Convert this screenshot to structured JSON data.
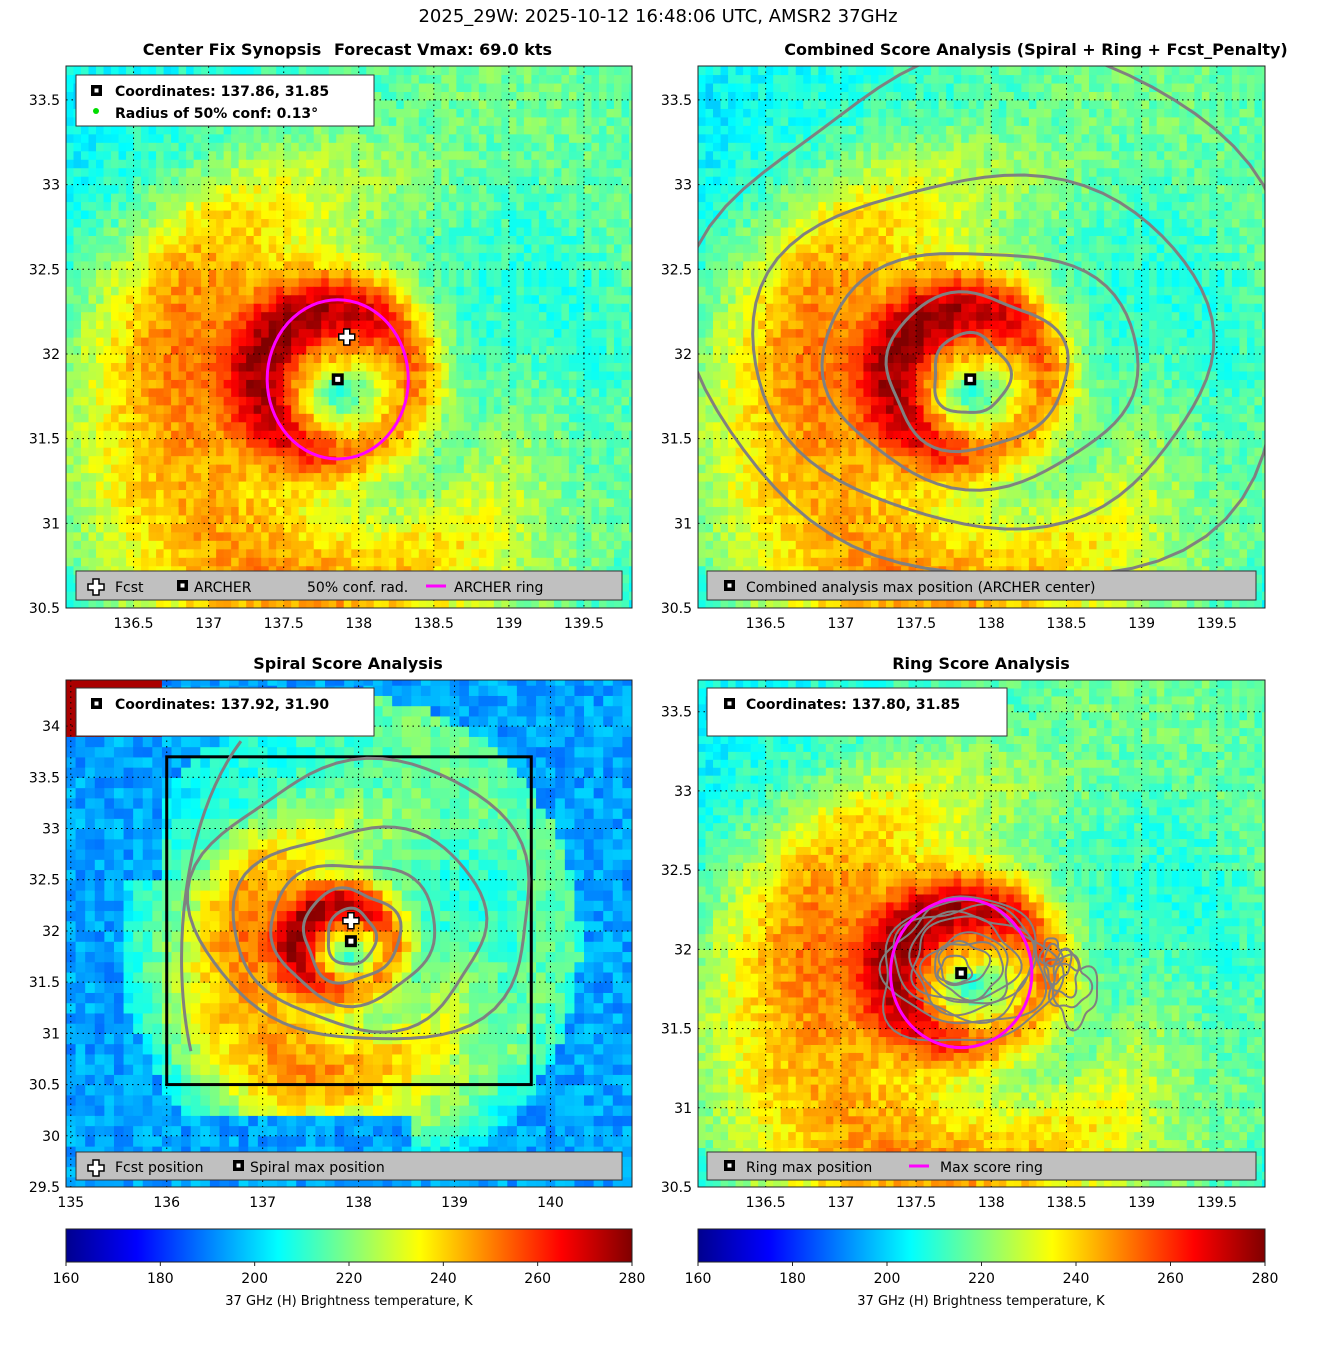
{
  "suptitle": "2025_29W: 2025-10-12 16:48:06 UTC, AMSR2 37GHz",
  "colors": {
    "archer_ring": "#ff00ff",
    "contour": "#808080",
    "conf_dot": "#00dd00",
    "legend_bar": "#c0c0c0",
    "box": "#000000"
  },
  "panels": {
    "synopsis": {
      "title_left": "Center Fix Synopsis",
      "title_right": "Forecast Vmax: 69.0 kts",
      "coords_label": "Coordinates: 137.86, 31.85",
      "radius_label": "Radius of 50% conf: 0.13°",
      "legend": [
        "Fcst",
        "ARCHER",
        "50% conf. rad.",
        "ARCHER ring"
      ],
      "xticks": [
        "136.5",
        "137",
        "137.5",
        "138",
        "138.5",
        "139",
        "139.5"
      ],
      "yticks": [
        "30.5",
        "31",
        "31.5",
        "32",
        "32.5",
        "33",
        "33.5"
      ]
    },
    "combined": {
      "title": "Combined Score Analysis (Spiral + Ring + Fcst_Penalty)",
      "legend": [
        "Combined analysis max position (ARCHER center)"
      ],
      "xticks": [
        "136.5",
        "137",
        "137.5",
        "138",
        "138.5",
        "139",
        "139.5"
      ],
      "yticks": [
        "30.5",
        "31",
        "31.5",
        "32",
        "32.5",
        "33",
        "33.5"
      ]
    },
    "spiral": {
      "title": "Spiral Score Analysis",
      "coords_label": "Coordinates: 137.92, 31.90",
      "legend": [
        "Fcst position",
        "Spiral max position"
      ],
      "xticks": [
        "135",
        "136",
        "137",
        "138",
        "139",
        "140"
      ],
      "yticks": [
        "29.5",
        "30",
        "30.5",
        "31",
        "31.5",
        "32",
        "32.5",
        "33",
        "33.5",
        "34"
      ]
    },
    "ring": {
      "title": "Ring Score Analysis",
      "coords_label": "Coordinates: 137.80, 31.85",
      "legend": [
        "Ring max position",
        "Max score ring"
      ],
      "xticks": [
        "136.5",
        "137",
        "137.5",
        "138",
        "138.5",
        "139",
        "139.5"
      ],
      "yticks": [
        "30.5",
        "31",
        "31.5",
        "32",
        "32.5",
        "33",
        "33.5"
      ]
    }
  },
  "colorbar": {
    "label": "37 GHz (H) Brightness temperature, K",
    "ticks": [
      "160",
      "180",
      "200",
      "220",
      "240",
      "260",
      "280"
    ]
  },
  "chart_data": [
    {
      "type": "heatmap",
      "title": "Center Fix Synopsis",
      "subtitle": "Forecast Vmax: 69.0 kts",
      "xlim": [
        136.05,
        139.82
      ],
      "ylim": [
        30.5,
        33.7
      ],
      "fcst_position": [
        137.92,
        32.1
      ],
      "archer_center": [
        137.86,
        31.85
      ],
      "archer_ring_radius_deg": 0.47,
      "conf_radius_deg": 0.13,
      "grid": true
    },
    {
      "type": "heatmap",
      "title": "Combined Score Analysis (Spiral + Ring + Fcst_Penalty)",
      "xlim": [
        136.05,
        139.82
      ],
      "ylim": [
        30.5,
        33.7
      ],
      "max_position": [
        137.86,
        31.85
      ],
      "grid": true
    },
    {
      "type": "heatmap",
      "title": "Spiral Score Analysis",
      "xlim": [
        134.95,
        140.85
      ],
      "ylim": [
        29.5,
        34.45
      ],
      "fcst_position": [
        137.92,
        32.1
      ],
      "spiral_max_position": [
        137.92,
        31.9
      ],
      "search_box": {
        "x": [
          136.0,
          139.8
        ],
        "y": [
          30.5,
          33.7
        ]
      },
      "grid": true
    },
    {
      "type": "heatmap",
      "title": "Ring Score Analysis",
      "xlim": [
        136.05,
        139.82
      ],
      "ylim": [
        30.5,
        33.7
      ],
      "ring_max_position": [
        137.8,
        31.85
      ],
      "max_score_ring_radius_deg": 0.47,
      "grid": true
    }
  ]
}
